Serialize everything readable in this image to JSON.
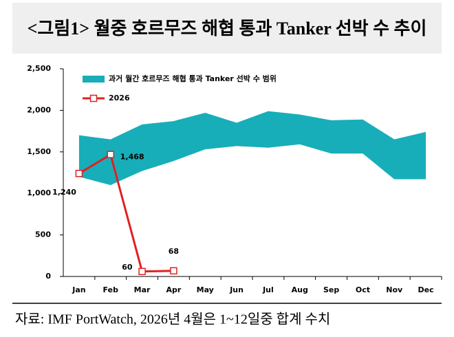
{
  "chart_data": {
    "type": "line",
    "title": "<그림1> 월중 호르무즈 해협 통과 Tanker 선박 수 추이",
    "source": "자료: IMF PortWatch, 2026년 4월은 1~12일중 합계 수치",
    "categories": [
      "Jan",
      "Feb",
      "Mar",
      "Apr",
      "May",
      "Jun",
      "Jul",
      "Aug",
      "Sep",
      "Oct",
      "Nov",
      "Dec"
    ],
    "range": {
      "name": "과거 월간 호르무즈 해협 통과 Tanker 선박 수 범위",
      "color": "#17AEB9",
      "max": [
        1700,
        1650,
        1830,
        1870,
        1970,
        1850,
        1990,
        1950,
        1880,
        1890,
        1650,
        1740
      ],
      "min": [
        1200,
        1100,
        1270,
        1390,
        1530,
        1570,
        1550,
        1590,
        1480,
        1480,
        1170,
        1170
      ]
    },
    "series": [
      {
        "name": "2026",
        "color": "#E02020",
        "values": [
          1240,
          1468,
          60,
          68,
          null,
          null,
          null,
          null,
          null,
          null,
          null,
          null
        ],
        "value_labels": [
          "1,240",
          "1,468",
          "60",
          "68",
          null,
          null,
          null,
          null,
          null,
          null,
          null,
          null
        ]
      }
    ],
    "ylim": [
      0,
      2500
    ],
    "yticks": [
      0,
      500,
      {
        "value": 1000,
        "label": "1,000"
      },
      {
        "value": 1500,
        "label": "1,500"
      },
      {
        "value": 2000,
        "label": "2,000"
      },
      {
        "value": 2500,
        "label": "2,500"
      }
    ]
  }
}
